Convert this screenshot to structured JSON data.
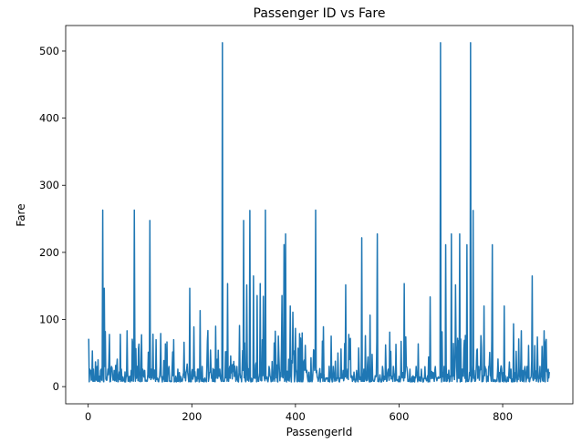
{
  "chart_data": {
    "type": "line",
    "title": "Passenger ID vs Fare",
    "xlabel": "PassengerId",
    "ylabel": "Fare",
    "xlim": [
      -43.5,
      935.5
    ],
    "ylim": [
      -25.6,
      538.0
    ],
    "xticks": [
      0,
      200,
      400,
      600,
      800
    ],
    "yticks": [
      0,
      100,
      200,
      300,
      400,
      500
    ],
    "grid": false,
    "color": "#1f77b4",
    "baseline": [
      7.25,
      8.05,
      13.0,
      7.9,
      26.0,
      10.5,
      7.75,
      15.5,
      9.5,
      8.66,
      21.0,
      7.23,
      14.45,
      30.0,
      7.85,
      12.35,
      16.1,
      24.15,
      6.98,
      11.5
    ],
    "series": [
      {
        "peaks": [
          [
            1,
            71.3
          ],
          [
            8,
            53.1
          ],
          [
            28,
            263.0
          ],
          [
            31,
            146.5
          ],
          [
            33,
            82.0
          ],
          [
            62,
            77.9
          ],
          [
            75,
            83.2
          ],
          [
            89,
            263.0
          ],
          [
            98,
            63.4
          ],
          [
            103,
            77.3
          ],
          [
            119,
            247.5
          ],
          [
            140,
            79.2
          ],
          [
            152,
            66.6
          ],
          [
            196,
            146.5
          ],
          [
            216,
            113.3
          ],
          [
            231,
            83.5
          ],
          [
            246,
            90.0
          ],
          [
            259,
            512.3
          ],
          [
            269,
            153.5
          ],
          [
            292,
            91.1
          ],
          [
            300,
            247.5
          ],
          [
            306,
            151.5
          ],
          [
            312,
            262.4
          ],
          [
            319,
            164.9
          ],
          [
            326,
            135.6
          ],
          [
            332,
            153.5
          ],
          [
            338,
            134.5
          ],
          [
            342,
            263.0
          ],
          [
            367,
            75.3
          ],
          [
            374,
            135.6
          ],
          [
            378,
            211.5
          ],
          [
            381,
            227.5
          ],
          [
            390,
            120.0
          ],
          [
            395,
            110.9
          ],
          [
            439,
            263.0
          ],
          [
            454,
            89.1
          ],
          [
            497,
            151.6
          ],
          [
            528,
            221.8
          ],
          [
            544,
            106.4
          ],
          [
            558,
            227.5
          ],
          [
            582,
            81.1
          ],
          [
            610,
            153.5
          ],
          [
            660,
            133.7
          ],
          [
            680,
            512.3
          ],
          [
            690,
            211.3
          ],
          [
            701,
            227.5
          ],
          [
            709,
            151.6
          ],
          [
            717,
            227.5
          ],
          [
            731,
            211.3
          ],
          [
            738,
            512.3
          ],
          [
            743,
            262.4
          ],
          [
            764,
            120.0
          ],
          [
            780,
            211.3
          ],
          [
            803,
            120.0
          ],
          [
            821,
            93.5
          ],
          [
            836,
            83.2
          ],
          [
            857,
            164.9
          ],
          [
            880,
            83.2
          ]
        ]
      }
    ]
  }
}
